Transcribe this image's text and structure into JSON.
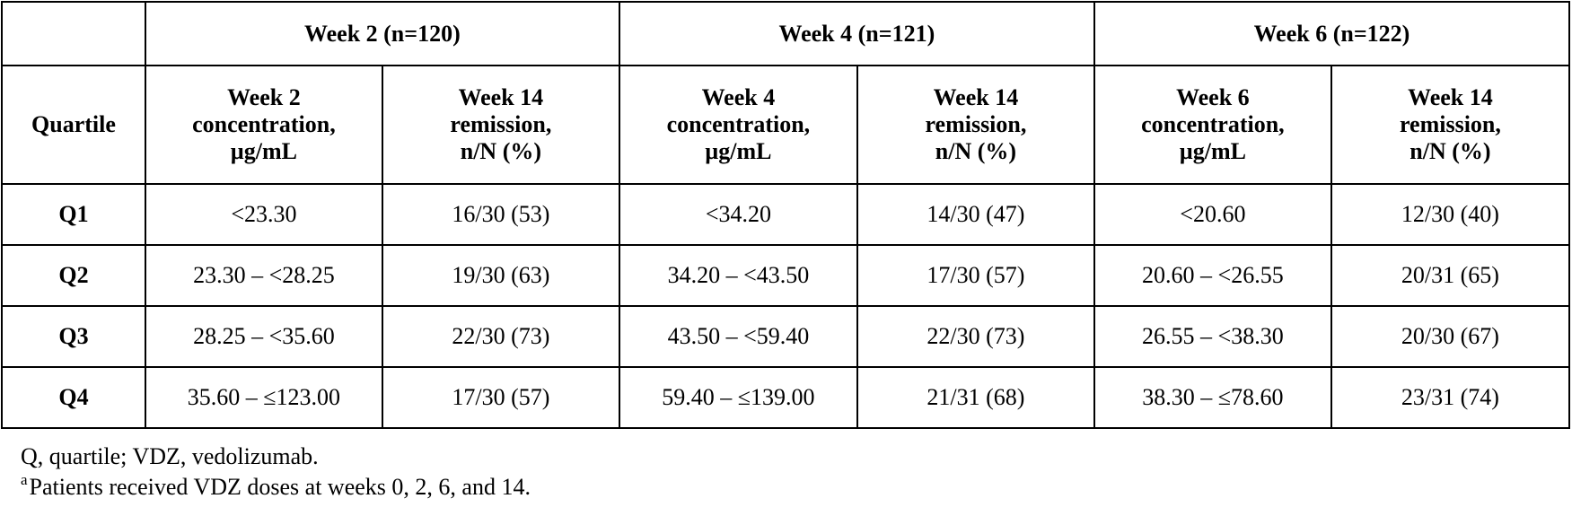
{
  "table": {
    "corner_label": "",
    "group_headers": [
      "Week 2 (n=120)",
      "Week 4 (n=121)",
      "Week 6 (n=122)"
    ],
    "quartile_header": "Quartile",
    "sub_headers": [
      [
        "Week 2",
        "concentration,",
        "µg/mL"
      ],
      [
        "Week 14",
        "remission,",
        "n/N (%)"
      ],
      [
        "Week 4",
        "concentration,",
        "µg/mL"
      ],
      [
        "Week 14",
        "remission,",
        "n/N (%)"
      ],
      [
        "Week 6",
        "concentration,",
        "µg/mL"
      ],
      [
        "Week 14",
        "remission,",
        "n/N (%)"
      ]
    ],
    "rows": [
      {
        "quartile": "Q1",
        "cells": [
          "<23.30",
          "16/30 (53)",
          "<34.20",
          "14/30 (47)",
          "<20.60",
          "12/30 (40)"
        ]
      },
      {
        "quartile": "Q2",
        "cells": [
          "23.30 – <28.25",
          "19/30 (63)",
          "34.20 – <43.50",
          "17/30 (57)",
          "20.60 – <26.55",
          "20/31 (65)"
        ]
      },
      {
        "quartile": "Q3",
        "cells": [
          "28.25 – <35.60",
          "22/30 (73)",
          "43.50 – <59.40",
          "22/30 (73)",
          "26.55 – <38.30",
          "20/30 (67)"
        ]
      },
      {
        "quartile": "Q4",
        "cells": [
          "35.60 – ≤123.00",
          "17/30 (57)",
          "59.40 – ≤139.00",
          "21/31 (68)",
          "38.30 – ≤78.60",
          "23/31 (74)"
        ]
      }
    ]
  },
  "footnotes": {
    "abbreviations": "Q, quartile; VDZ, vedolizumab.",
    "note_marker": "a",
    "note_text": "Patients received VDZ doses at weeks 0, 2, 6, and 14."
  }
}
